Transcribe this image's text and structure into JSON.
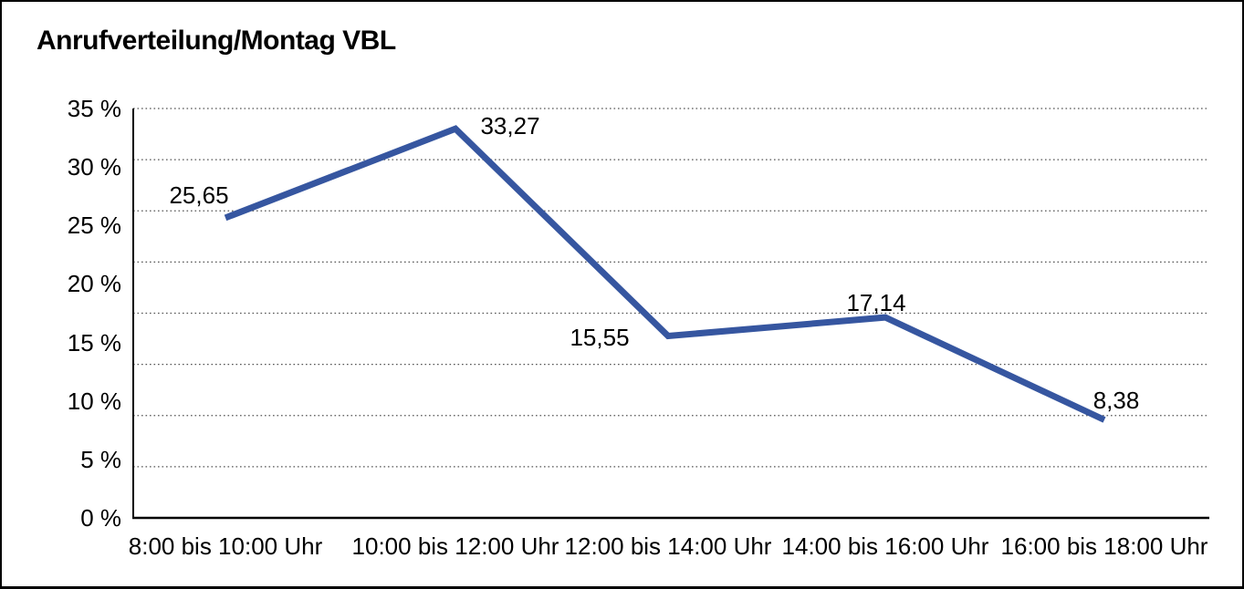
{
  "window": {
    "background": "#ffffff",
    "border_color": "#000000"
  },
  "chart_data": {
    "type": "line",
    "title": "Anrufverteilung/Montag VBL",
    "categories": [
      "8:00 bis 10:00 Uhr",
      "10:00 bis 12:00 Uhr",
      "12:00 bis 14:00 Uhr",
      "14:00 bis 16:00 Uhr",
      "16:00 bis 18:00 Uhr"
    ],
    "series": [
      {
        "name": "Anrufverteilung Montag VBL",
        "values": [
          25.65,
          33.27,
          15.55,
          17.14,
          8.38
        ],
        "value_labels": [
          "25,65",
          "33,27",
          "15,55",
          "17,14",
          "8,38"
        ]
      }
    ],
    "xlabel": "",
    "ylabel": "",
    "ylim": [
      0,
      35
    ],
    "y_tick_values": [
      35,
      30,
      25,
      20,
      15,
      10,
      5,
      0
    ],
    "y_tick_labels": [
      "35 %",
      "30 %",
      "25 %",
      "20 %",
      "15 %",
      "10 %",
      "5 %",
      "0 %"
    ],
    "grid": "horizontal dotted gridlines, 8 equal divisions, shown",
    "legend": "none",
    "line_color": "#3656A0",
    "gridline_color": "#555555",
    "axis_color": "#000000",
    "text_color": "#000000"
  }
}
